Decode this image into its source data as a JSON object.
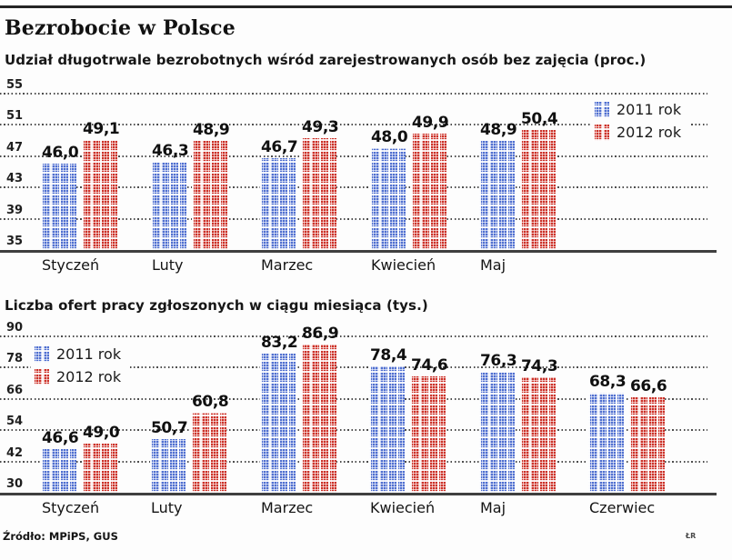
{
  "page": {
    "title": "Bezrobocie w Polsce",
    "source": "Źródło: MPiPS, GUS",
    "credit": "ŁR"
  },
  "legend": {
    "year_2011": "2011 rok",
    "year_2012": "2012 rok"
  },
  "colors": {
    "bar_2011": "#4f6fd0",
    "bar_2012": "#cc3128",
    "grid": "#4d4d4d",
    "text": "#1c1c1c"
  },
  "chart_data": [
    {
      "type": "bar",
      "title": "Udział długotrwale bezrobotnych wśród zarejestrowanych osób bez zajęcia (proc.)",
      "categories": [
        "Styczeń",
        "Luty",
        "Marzec",
        "Kwiecień",
        "Maj"
      ],
      "series": [
        {
          "name": "2011 rok",
          "values": [
            46.0,
            46.3,
            46.7,
            48.0,
            48.9
          ],
          "labels": [
            "46,0",
            "46,3",
            "46,7",
            "48,0",
            "48,9"
          ]
        },
        {
          "name": "2012 rok",
          "values": [
            49.1,
            48.9,
            49.3,
            49.9,
            50.4
          ],
          "labels": [
            "49,1",
            "48,9",
            "49,3",
            "49,9",
            "50,4"
          ]
        }
      ],
      "ylim": [
        35,
        55
      ],
      "yticks": [
        55,
        51,
        47,
        43,
        39,
        35
      ],
      "grid": "dotted-horizontal",
      "legend_position": "right"
    },
    {
      "type": "bar",
      "title": "Liczba ofert pracy zgłoszonych w ciągu miesiąca (tys.)",
      "categories": [
        "Styczeń",
        "Luty",
        "Marzec",
        "Kwiecień",
        "Maj",
        "Czerwiec"
      ],
      "series": [
        {
          "name": "2011 rok",
          "values": [
            46.6,
            50.7,
            83.2,
            78.4,
            76.3,
            68.3
          ],
          "labels": [
            "46,6",
            "50,7",
            "83,2",
            "78,4",
            "76,3",
            "68,3"
          ]
        },
        {
          "name": "2012 rok",
          "values": [
            49.0,
            60.8,
            86.9,
            74.6,
            74.3,
            66.6
          ],
          "labels": [
            "49,0",
            "60,8",
            "86,9",
            "74,6",
            "74,3",
            "66,6"
          ]
        }
      ],
      "ylim": [
        30,
        90
      ],
      "yticks": [
        90,
        78,
        66,
        54,
        42,
        30
      ],
      "grid": "dotted-horizontal",
      "legend_position": "upper-left"
    }
  ]
}
